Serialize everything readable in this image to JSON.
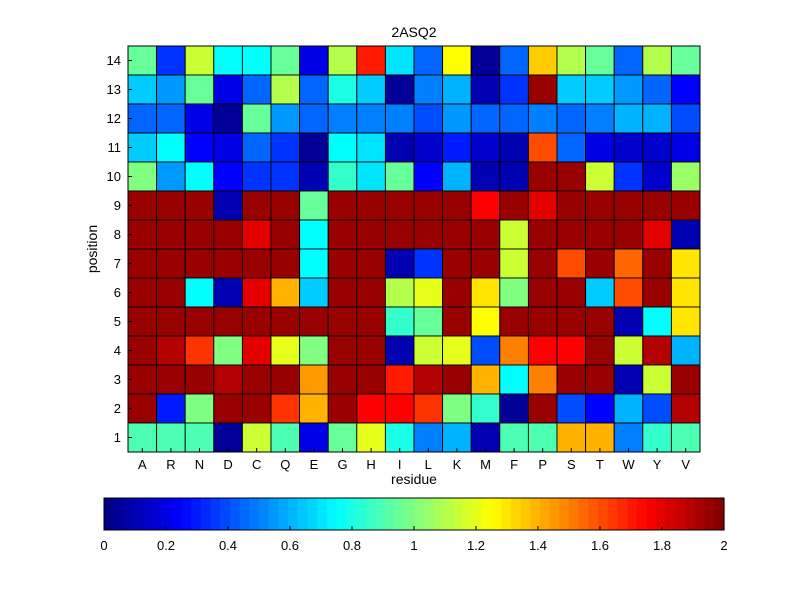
{
  "chart_data": {
    "type": "heatmap",
    "title": "2ASQ2",
    "xlabel": "residue",
    "ylabel": "position",
    "x_categories": [
      "A",
      "R",
      "N",
      "D",
      "C",
      "Q",
      "E",
      "G",
      "H",
      "I",
      "L",
      "K",
      "M",
      "F",
      "P",
      "S",
      "T",
      "W",
      "Y",
      "V"
    ],
    "y_categories": [
      "1",
      "2",
      "3",
      "4",
      "5",
      "6",
      "7",
      "8",
      "9",
      "10",
      "11",
      "12",
      "13",
      "14"
    ],
    "value_range": [
      0,
      2
    ],
    "colormap": "jet",
    "colorbar_ticks": [
      "0",
      "0.2",
      "0.4",
      "0.6",
      "0.8",
      "1",
      "1.2",
      "1.4",
      "1.6",
      "1.8",
      "2"
    ],
    "rows": [
      {
        "position": "14",
        "values": [
          0.95,
          0.35,
          1.15,
          0.75,
          0.75,
          0.95,
          0.2,
          1.1,
          1.7,
          0.7,
          0.45,
          1.25,
          0.05,
          0.45,
          1.35,
          1.1,
          0.95,
          0.45,
          1.1,
          0.95
        ]
      },
      {
        "position": "13",
        "values": [
          0.65,
          0.55,
          0.95,
          0.2,
          0.45,
          1.1,
          0.45,
          0.8,
          0.65,
          0.05,
          0.5,
          0.6,
          0.1,
          0.35,
          1.95,
          0.65,
          0.65,
          0.55,
          0.45,
          0.25
        ]
      },
      {
        "position": "12",
        "values": [
          0.45,
          0.45,
          0.2,
          0.05,
          0.95,
          0.55,
          0.45,
          0.5,
          0.5,
          0.5,
          0.4,
          0.55,
          0.45,
          0.45,
          0.5,
          0.45,
          0.5,
          0.6,
          0.6,
          0.4
        ]
      },
      {
        "position": "11",
        "values": [
          0.65,
          0.75,
          0.25,
          0.2,
          0.45,
          0.35,
          0.05,
          0.75,
          0.7,
          0.1,
          0.15,
          0.3,
          0.15,
          0.1,
          1.6,
          0.45,
          0.2,
          0.15,
          0.15,
          0.2
        ]
      },
      {
        "position": "10",
        "values": [
          1.0,
          0.55,
          0.75,
          0.25,
          0.35,
          0.35,
          0.1,
          0.85,
          0.7,
          0.95,
          0.25,
          0.6,
          0.1,
          0.1,
          1.95,
          1.95,
          1.15,
          0.35,
          0.15,
          1.05
        ]
      },
      {
        "position": "9",
        "values": [
          1.95,
          1.95,
          1.95,
          0.1,
          1.95,
          1.95,
          0.95,
          1.95,
          1.95,
          1.95,
          1.95,
          1.95,
          1.75,
          1.95,
          1.8,
          1.95,
          1.95,
          1.95,
          1.95,
          1.95
        ]
      },
      {
        "position": "8",
        "values": [
          1.95,
          1.95,
          1.95,
          1.95,
          1.8,
          1.95,
          0.75,
          1.95,
          1.95,
          1.95,
          1.95,
          1.95,
          1.95,
          1.15,
          1.95,
          1.95,
          1.95,
          1.95,
          1.8,
          0.1
        ]
      },
      {
        "position": "7",
        "values": [
          1.95,
          1.95,
          1.95,
          1.95,
          1.95,
          1.95,
          0.75,
          1.95,
          1.95,
          0.1,
          0.35,
          1.95,
          1.95,
          1.15,
          1.95,
          1.6,
          1.95,
          1.55,
          1.95,
          1.3
        ]
      },
      {
        "position": "6",
        "values": [
          1.95,
          1.95,
          0.75,
          0.1,
          1.8,
          1.4,
          0.65,
          1.95,
          1.95,
          1.1,
          1.2,
          1.95,
          1.3,
          1.0,
          1.95,
          1.95,
          0.65,
          1.6,
          1.95,
          1.3
        ]
      },
      {
        "position": "5",
        "values": [
          1.95,
          1.95,
          1.95,
          1.95,
          1.95,
          1.95,
          1.95,
          1.95,
          1.95,
          0.85,
          0.95,
          1.95,
          1.25,
          1.95,
          1.95,
          1.95,
          1.95,
          0.1,
          0.75,
          1.3
        ]
      },
      {
        "position": "4",
        "values": [
          1.95,
          1.9,
          1.65,
          1.0,
          1.8,
          1.2,
          1.0,
          1.95,
          1.95,
          0.1,
          1.15,
          1.2,
          0.4,
          1.5,
          1.75,
          1.75,
          1.95,
          1.15,
          1.9,
          0.6
        ]
      },
      {
        "position": "3",
        "values": [
          1.95,
          1.95,
          1.95,
          1.9,
          1.95,
          1.95,
          1.45,
          1.95,
          1.95,
          1.7,
          1.9,
          1.95,
          1.4,
          0.75,
          1.5,
          1.95,
          1.95,
          0.1,
          1.15,
          1.95
        ]
      },
      {
        "position": "2",
        "values": [
          1.95,
          0.3,
          1.0,
          1.95,
          1.95,
          1.65,
          1.4,
          1.95,
          1.75,
          1.75,
          1.65,
          1.0,
          0.85,
          0.05,
          1.95,
          0.4,
          0.25,
          0.6,
          0.4,
          1.9
        ]
      },
      {
        "position": "1",
        "values": [
          0.9,
          0.9,
          0.9,
          0.05,
          1.15,
          0.9,
          0.2,
          0.95,
          1.2,
          0.8,
          0.5,
          0.6,
          0.1,
          0.9,
          0.9,
          1.4,
          1.4,
          0.5,
          0.85,
          0.9
        ]
      }
    ]
  }
}
